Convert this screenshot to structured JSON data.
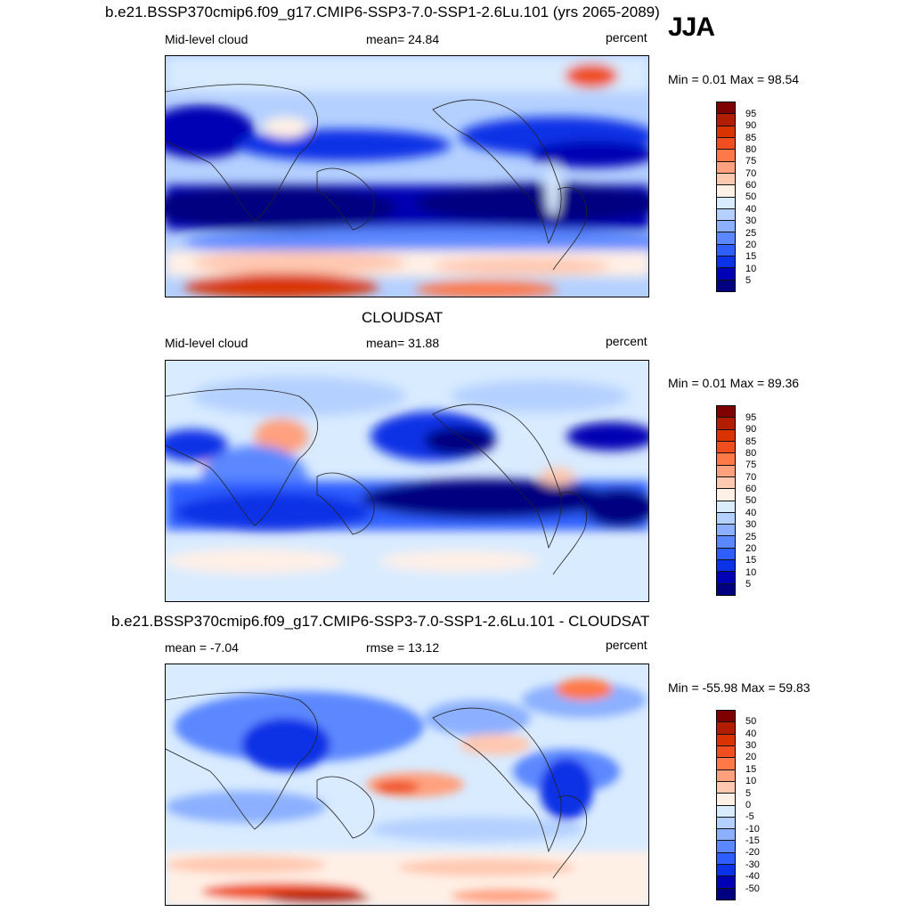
{
  "season": "JJA",
  "panels": [
    {
      "title": "b.e21.BSSP370cmip6.f09_g17.CMIP6-SSP3-7.0-SSP1-2.6Lu.101 (yrs 2065-2089)",
      "left_label": "Mid-level cloud",
      "center_label": "mean=  24.84",
      "units": "percent",
      "minmax": "Min =   0.01 Max =  98.54",
      "levels": [
        "95",
        "90",
        "85",
        "80",
        "75",
        "70",
        "60",
        "50",
        "40",
        "30",
        "25",
        "20",
        "15",
        "10",
        "5"
      ]
    },
    {
      "title": "CLOUDSAT",
      "left_label": "Mid-level cloud",
      "center_label": "mean=  31.88",
      "units": "percent",
      "minmax": "Min =   0.01 Max =  89.36",
      "levels": [
        "95",
        "90",
        "85",
        "80",
        "75",
        "70",
        "60",
        "50",
        "40",
        "30",
        "25",
        "20",
        "15",
        "10",
        "5"
      ]
    },
    {
      "title": "b.e21.BSSP370cmip6.f09_g17.CMIP6-SSP3-7.0-SSP1-2.6Lu.101 - CLOUDSAT",
      "left_label": "mean =  -7.04",
      "center_label": "rmse =  13.12",
      "units": "percent",
      "minmax": "Min = -55.98 Max =  59.83",
      "levels": [
        "50",
        "40",
        "30",
        "20",
        "15",
        "10",
        "5",
        "0",
        "-5",
        "-10",
        "-15",
        "-20",
        "-30",
        "-40",
        "-50"
      ]
    }
  ],
  "colors": {
    "scale": [
      "#7f0000",
      "#b21c00",
      "#d93400",
      "#f04e1e",
      "#ff7848",
      "#ffa07e",
      "#ffc8b0",
      "#fff0e6",
      "#d8ebff",
      "#b4d0ff",
      "#8cb0ff",
      "#5c88ff",
      "#2f5eff",
      "#0a32e6",
      "#0000b4",
      "#000080"
    ]
  }
}
